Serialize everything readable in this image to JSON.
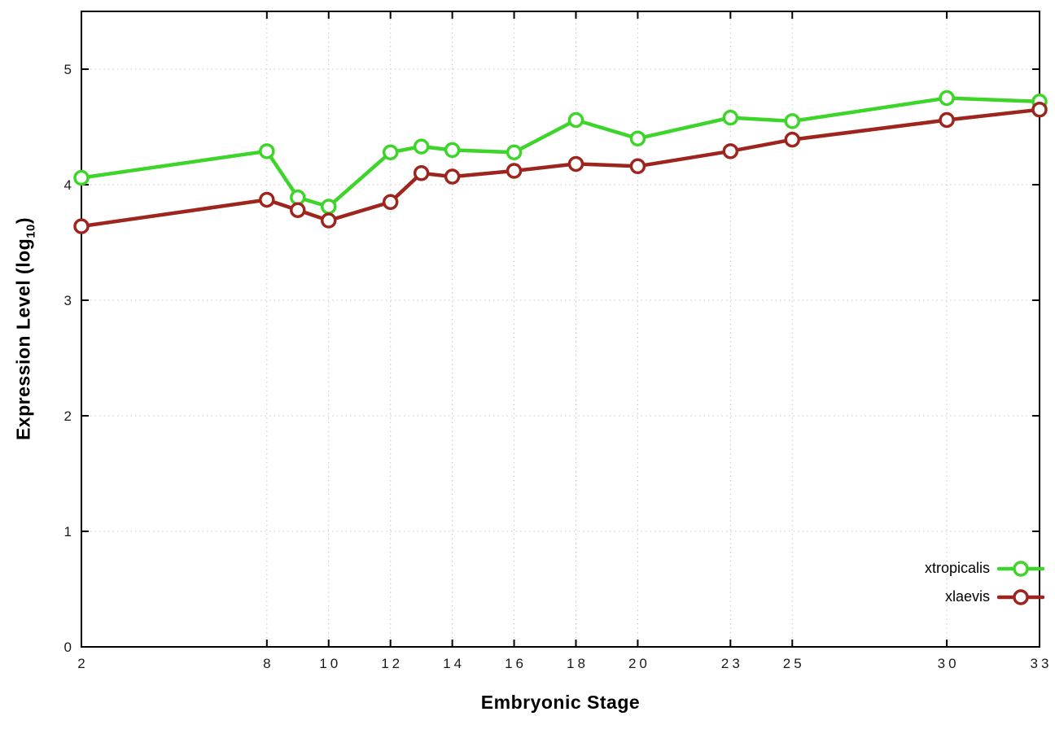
{
  "chart_data": {
    "type": "line",
    "title": "",
    "xlabel": "Embryonic Stage",
    "ylabel": "Expression Level (log10)",
    "ylabel_main": "Expression Level (log",
    "ylabel_sub": "10",
    "ylabel_end": ")",
    "xlim": [
      2,
      33
    ],
    "ylim": [
      0,
      5.5
    ],
    "x_ticks": [
      2,
      8,
      10,
      12,
      14,
      16,
      18,
      20,
      23,
      25,
      30,
      33
    ],
    "y_ticks": [
      0,
      1,
      2,
      3,
      4,
      5
    ],
    "grid": true,
    "grid_style": "dotted",
    "legend_position": "bottom-right",
    "background_color": "#ffffff",
    "x": [
      2,
      8,
      9,
      10,
      12,
      13,
      14,
      16,
      18,
      20,
      23,
      25,
      30,
      33
    ],
    "series": [
      {
        "name": "xtropicalis",
        "color": "#3dd52a",
        "marker": "open-circle",
        "values": [
          4.06,
          4.29,
          3.89,
          3.81,
          4.28,
          4.33,
          4.3,
          4.28,
          4.56,
          4.4,
          4.58,
          4.55,
          4.75,
          4.72
        ]
      },
      {
        "name": "xlaevis",
        "color": "#9e251e",
        "marker": "open-circle",
        "values": [
          3.64,
          3.87,
          3.78,
          3.69,
          3.85,
          4.1,
          4.07,
          4.12,
          4.18,
          4.16,
          4.29,
          4.39,
          4.56,
          4.65
        ]
      }
    ]
  }
}
